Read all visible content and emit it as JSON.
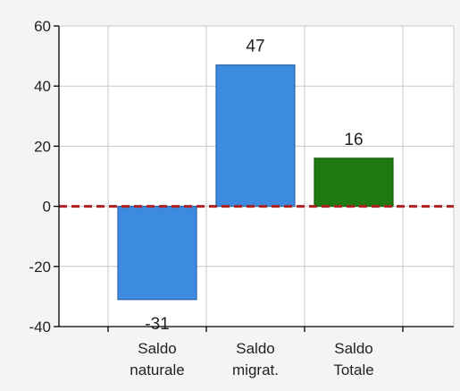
{
  "chart_data": {
    "type": "bar",
    "categories": [
      {
        "line1": "Saldo",
        "line2": "naturale"
      },
      {
        "line1": "Saldo",
        "line2": "migrat."
      },
      {
        "line1": "Saldo",
        "line2": "Totale"
      }
    ],
    "values": [
      -31,
      47,
      16
    ],
    "value_labels": [
      "-31",
      "47",
      "16"
    ],
    "bar_colors": [
      "#3c8be0",
      "#3c8be0",
      "#1f7a12"
    ],
    "bar_stroke_colors": [
      "#2a63a8",
      "#2a63a8",
      "#155d0c"
    ],
    "ylim": [
      -40,
      60
    ],
    "yticks": [
      -40,
      -20,
      0,
      20,
      40,
      60
    ],
    "ytick_labels": [
      "-40",
      "-20",
      "0",
      "20",
      "40",
      "60"
    ],
    "reference_line": {
      "value": 0,
      "style": "dashed",
      "color": "#b02020"
    },
    "grid": true,
    "grid_color": "#c8c8c8",
    "plot_background": "#ffffff",
    "page_background": "#f4f4f4",
    "title": "",
    "xlabel": "",
    "ylabel": ""
  }
}
